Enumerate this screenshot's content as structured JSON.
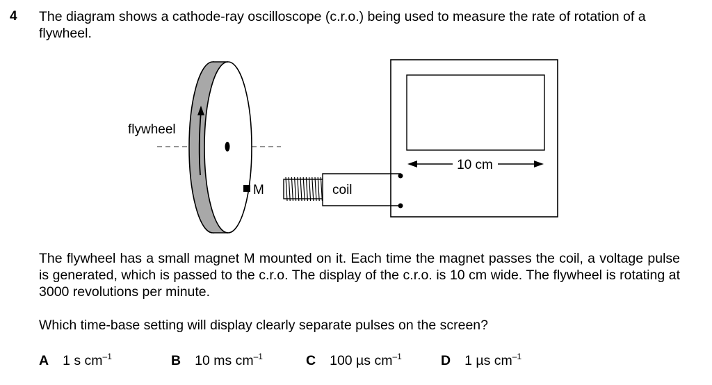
{
  "question": {
    "number": "4",
    "stem": "The diagram shows a cathode-ray oscilloscope (c.r.o.) being used to measure the rate of rotation of a flywheel.",
    "paragraph": "The flywheel has a small magnet M mounted on it. Each time the magnet passes the coil, a voltage pulse is generated, which is passed to the c.r.o. The display of the c.r.o. is 10 cm wide. The flywheel is rotating at 3000 revolutions per minute.",
    "prompt": "Which time-base setting will display clearly separate pulses on the screen?"
  },
  "diagram": {
    "flywheel_label": "flywheel",
    "magnet_label": "M",
    "coil_label": "coil",
    "screen_width_label": "10 cm"
  },
  "options": [
    {
      "letter": "A",
      "value": "1 s cm",
      "exp": "–1"
    },
    {
      "letter": "B",
      "value": "10 ms cm",
      "exp": "–1"
    },
    {
      "letter": "C",
      "value": "100 µs cm",
      "exp": "–1"
    },
    {
      "letter": "D",
      "value": "1 µs cm",
      "exp": "–1"
    }
  ]
}
